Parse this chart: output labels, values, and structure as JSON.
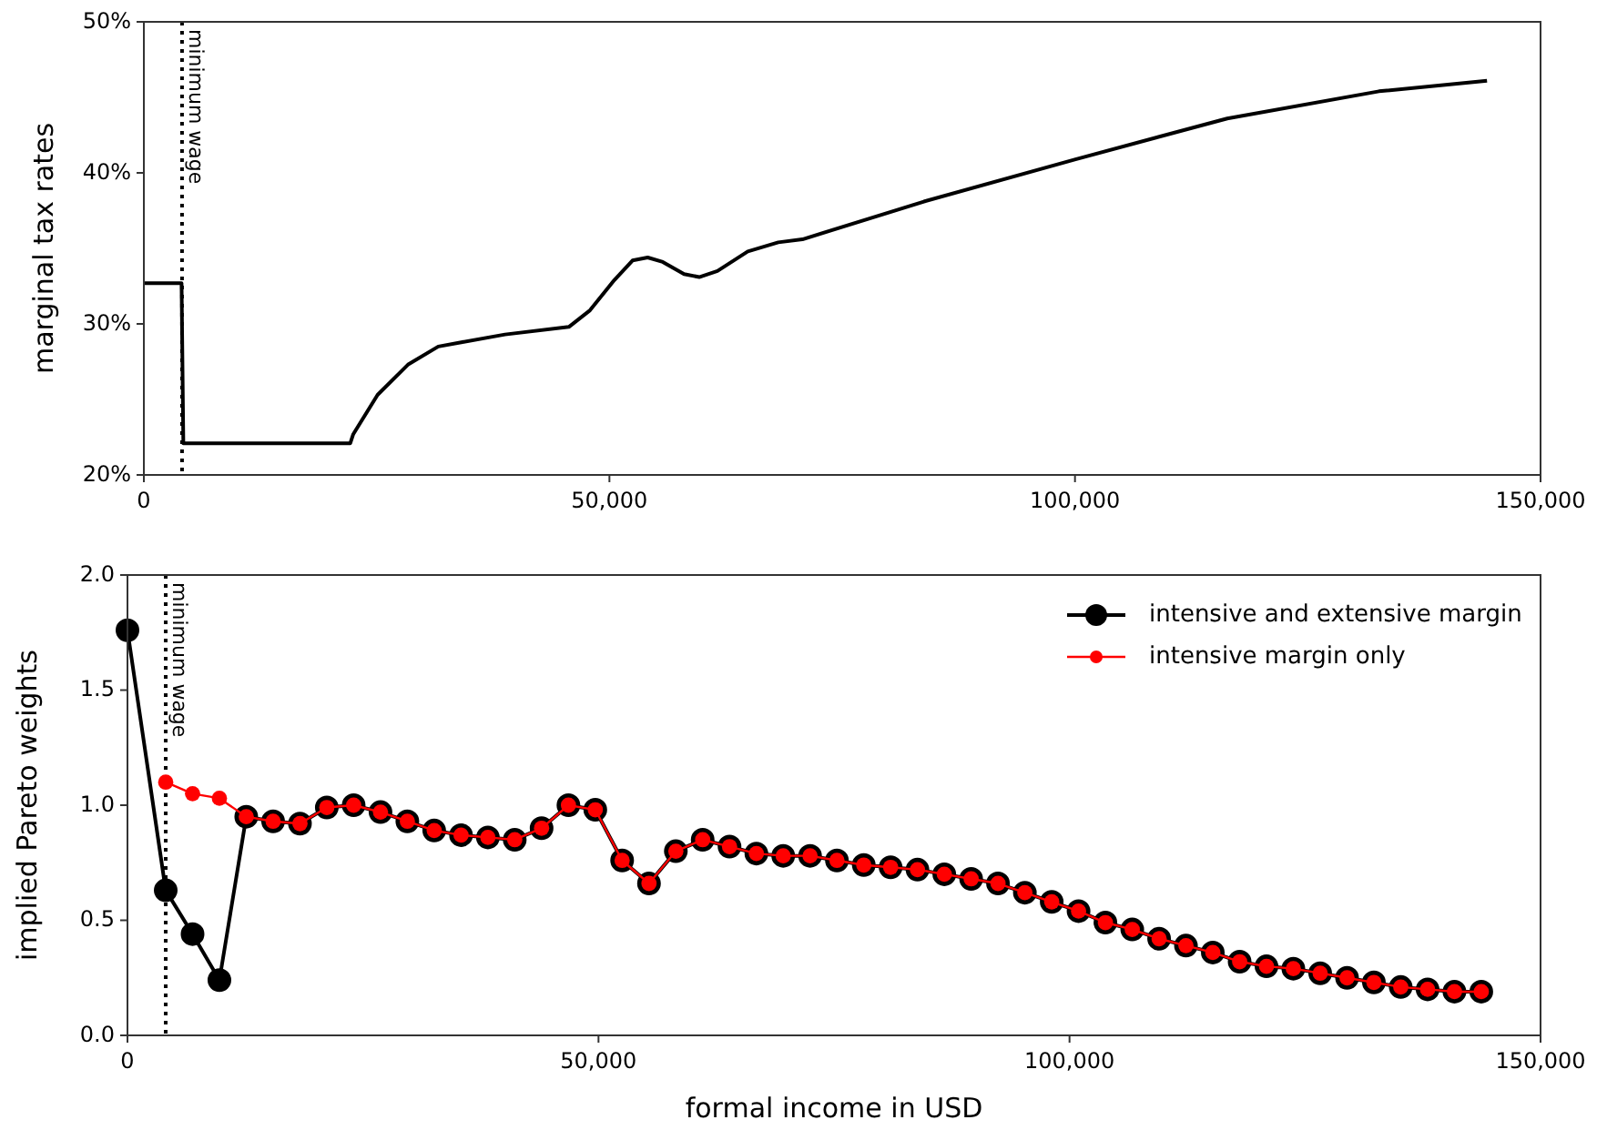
{
  "chart_data": [
    {
      "type": "line",
      "ylabel": "marginal tax rates",
      "xlim": [
        0,
        150000
      ],
      "ylim": [
        20,
        50
      ],
      "xticks": [
        0,
        {
          "value": 50000,
          "label": "50,000"
        },
        {
          "value": 100000,
          "label": "100,000"
        },
        {
          "value": 150000,
          "label": "150,000"
        }
      ],
      "yticks": [
        {
          "value": 20,
          "label": "20%"
        },
        {
          "value": 30,
          "label": "30%"
        },
        {
          "value": 40,
          "label": "40%"
        },
        {
          "value": 50,
          "label": "50%"
        }
      ],
      "grid": false,
      "legend": false,
      "marker": "none",
      "ref_lines": [
        {
          "axis": "x",
          "value": 4100,
          "label": "minimum wage",
          "line_style": "dotted",
          "color": "#000000"
        }
      ],
      "series": [
        {
          "color": "#000000",
          "x": [
            0,
            4050,
            4240,
            22170,
            22490,
            25100,
            28360,
            31620,
            34220,
            38790,
            45640,
            47910,
            50530,
            52480,
            54110,
            55730,
            58020,
            59640,
            61600,
            64860,
            68130,
            70730,
            83770,
            100060,
            116350,
            132650,
            144250
          ],
          "values": [
            32.7,
            32.7,
            22.1,
            22.1,
            22.7,
            25.3,
            27.3,
            28.5,
            28.8,
            29.3,
            29.8,
            30.9,
            32.9,
            34.2,
            34.4,
            34.1,
            33.3,
            33.1,
            33.5,
            34.8,
            35.4,
            35.6,
            38.1,
            40.9,
            43.6,
            45.4,
            46.1
          ]
        }
      ]
    },
    {
      "type": "line",
      "xlabel": "formal income in USD",
      "ylabel": "implied Pareto weights",
      "xlim": [
        0,
        150000
      ],
      "ylim": [
        0,
        2
      ],
      "xticks": [
        0,
        {
          "value": 50000,
          "label": "50,000"
        },
        {
          "value": 100000,
          "label": "100,000"
        },
        {
          "value": 150000,
          "label": "150,000"
        }
      ],
      "yticks": [
        {
          "value": 0,
          "label": "0.0"
        },
        {
          "value": 0.5,
          "label": "0.5"
        },
        {
          "value": 1,
          "label": "1.0"
        },
        {
          "value": 1.5,
          "label": "1.5"
        },
        {
          "value": 2,
          "label": "2.0"
        }
      ],
      "grid": false,
      "legend": "top right",
      "marker": "circle",
      "ref_lines": [
        {
          "axis": "x",
          "value": 4060,
          "label": "minimum wage",
          "line_style": "dotted",
          "color": "#000000"
        }
      ],
      "series": [
        {
          "name": "intensive and extensive margin",
          "color": "#000000",
          "x": [
            0,
            4060,
            6910,
            9760,
            12610,
            15460,
            18310,
            21160,
            24010,
            26860,
            29710,
            32560,
            35410,
            38260,
            41110,
            43960,
            46810,
            49660,
            52510,
            55360,
            58210,
            61060,
            63910,
            66760,
            69610,
            72460,
            75310,
            78160,
            81010,
            83860,
            86710,
            89560,
            92410,
            95260,
            98110,
            100960,
            103810,
            106660,
            109510,
            112360,
            115210,
            118060,
            120910,
            123760,
            126610,
            129460,
            132310,
            135160,
            138010,
            140860,
            143710
          ],
          "values": [
            1.76,
            0.63,
            0.44,
            0.24,
            0.95,
            0.93,
            0.92,
            0.99,
            1.0,
            0.97,
            0.93,
            0.89,
            0.87,
            0.86,
            0.85,
            0.9,
            1.0,
            0.98,
            0.76,
            0.66,
            0.8,
            0.85,
            0.82,
            0.79,
            0.78,
            0.78,
            0.76,
            0.74,
            0.73,
            0.72,
            0.7,
            0.68,
            0.66,
            0.62,
            0.58,
            0.54,
            0.49,
            0.46,
            0.42,
            0.39,
            0.36,
            0.32,
            0.3,
            0.29,
            0.27,
            0.25,
            0.23,
            0.21,
            0.2,
            0.19,
            0.19
          ]
        },
        {
          "name": "intensive margin only",
          "color": "#ff0000",
          "x": [
            4060,
            6910,
            9760,
            12610,
            15460,
            18310,
            21160,
            24010,
            26860,
            29710,
            32560,
            35410,
            38260,
            41110,
            43960,
            46810,
            49660,
            52510,
            55360,
            58210,
            61060,
            63910,
            66760,
            69610,
            72460,
            75310,
            78160,
            81010,
            83860,
            86710,
            89560,
            92410,
            95260,
            98110,
            100960,
            103810,
            106660,
            109510,
            112360,
            115210,
            118060,
            120910,
            123760,
            126610,
            129460,
            132310,
            135160,
            138010,
            140860,
            143710
          ],
          "values": [
            1.1,
            1.05,
            1.03,
            0.95,
            0.93,
            0.92,
            0.99,
            1.0,
            0.97,
            0.93,
            0.89,
            0.87,
            0.86,
            0.85,
            0.9,
            1.0,
            0.98,
            0.76,
            0.66,
            0.8,
            0.85,
            0.82,
            0.79,
            0.78,
            0.78,
            0.76,
            0.74,
            0.73,
            0.72,
            0.7,
            0.68,
            0.66,
            0.62,
            0.58,
            0.54,
            0.49,
            0.46,
            0.42,
            0.39,
            0.36,
            0.32,
            0.3,
            0.29,
            0.27,
            0.25,
            0.23,
            0.21,
            0.2,
            0.19,
            0.19
          ]
        }
      ]
    }
  ]
}
